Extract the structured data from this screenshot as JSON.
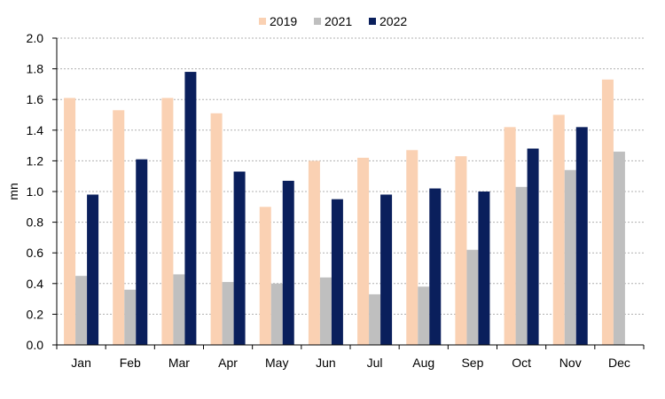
{
  "chart_data": {
    "type": "bar",
    "ylabel": "mn",
    "xlabel": "",
    "ylim": [
      0,
      2.0
    ],
    "yticks": [
      "0.0",
      "0.2",
      "0.4",
      "0.6",
      "0.8",
      "1.0",
      "1.2",
      "1.4",
      "1.6",
      "1.8",
      "2.0"
    ],
    "grid": true,
    "legend_position": "top-center",
    "categories": [
      "Jan",
      "Feb",
      "Mar",
      "Apr",
      "May",
      "Jun",
      "Jul",
      "Aug",
      "Sep",
      "Oct",
      "Nov",
      "Dec"
    ],
    "series": [
      {
        "name": "2019",
        "color": "#FAD1B3",
        "values": [
          1.61,
          1.53,
          1.61,
          1.51,
          0.9,
          1.2,
          1.22,
          1.27,
          1.23,
          1.42,
          1.5,
          1.73
        ]
      },
      {
        "name": "2021",
        "color": "#BFBFBF",
        "values": [
          0.45,
          0.36,
          0.46,
          0.41,
          0.4,
          0.44,
          0.33,
          0.38,
          0.62,
          1.03,
          1.14,
          1.26
        ]
      },
      {
        "name": "2022",
        "color": "#0A1F5C",
        "values": [
          0.98,
          1.21,
          1.78,
          1.13,
          1.07,
          0.95,
          0.98,
          1.02,
          1.0,
          1.28,
          1.42,
          null
        ]
      }
    ]
  }
}
